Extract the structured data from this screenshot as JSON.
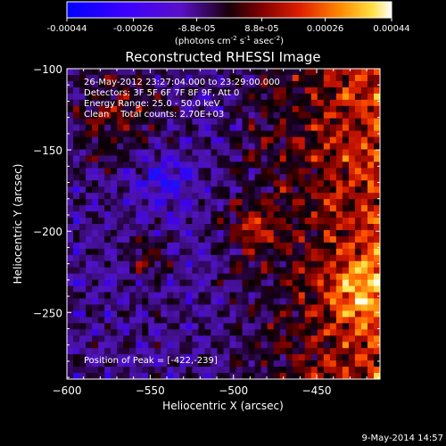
{
  "colorbar": {
    "tick_labels": [
      "-0.00044",
      "-0.00026",
      "-8.8e-05",
      "8.8e-05",
      "0.00026",
      "0.00044"
    ],
    "tick_values": [
      -0.00044,
      -0.00026,
      -8.8e-05,
      8.8e-05,
      0.00026,
      0.00044
    ],
    "range": [
      -0.00044,
      0.00044
    ],
    "units_prefix": "(photons cm",
    "units_exp1": "-2",
    "units_mid": " s",
    "units_exp2": "-1",
    "units_mid2": " asec",
    "units_exp3": "-2",
    "units_suffix": ")"
  },
  "chart_data": {
    "type": "heatmap",
    "title": "Reconstructed RHESSI Image",
    "xlabel": "Heliocentric X (arcsec)",
    "ylabel": "Heliocentric Y (arcsec)",
    "xlim": [
      -600,
      -412
    ],
    "ylim": [
      -291,
      -100
    ],
    "x_ticks": [
      -600,
      -550,
      -500,
      -450
    ],
    "x_tick_labels": [
      "−600",
      "−550",
      "−500",
      "−450"
    ],
    "y_ticks": [
      -100,
      -150,
      -200,
      -250
    ],
    "y_tick_labels": [
      "−100",
      "−150",
      "−200",
      "−250"
    ],
    "annotations": [
      "26-May-2012 23:27:04.000 to 23:29:00.000",
      "Detectors: 3F 5F 6F 7F 8F 9F, Att 0",
      "Energy Range: 25.0 - 50.0 keV",
      "Clean    Total counts: 2.70E+03"
    ],
    "peak_label": "Position of Peak = [-422,-239]",
    "peak": [
      -422,
      -239
    ],
    "grid": false
  },
  "footer": {
    "date": "9-May-2014 14:57"
  }
}
